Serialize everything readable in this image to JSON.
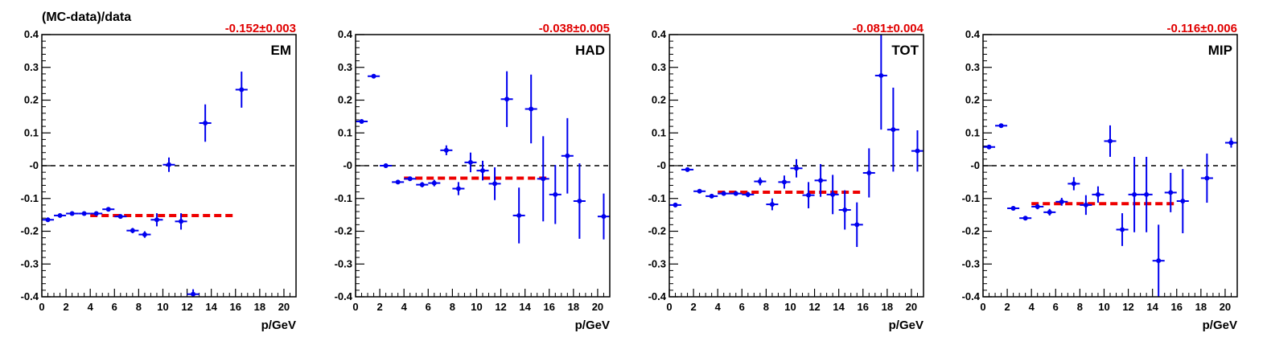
{
  "ylabel": "(MC-data)/data",
  "colors": {
    "points": "#0000ee",
    "fit": "#ee0000",
    "zero_line": "#000000",
    "fit_text": "#e00000"
  },
  "chart_data": [
    {
      "type": "scatter",
      "label": "EM",
      "fit_text": "-0.152±0.003",
      "fit_value": -0.152,
      "fit_range": [
        4,
        16
      ],
      "xlabel": "p/GeV",
      "xlim": [
        0,
        21
      ],
      "ylim": [
        -0.4,
        0.4
      ],
      "xticks": [
        0,
        2,
        4,
        6,
        8,
        10,
        12,
        14,
        16,
        18,
        20
      ],
      "yticks": [
        -0.4,
        -0.3,
        -0.2,
        -0.1,
        0,
        0.1,
        0.2,
        0.3,
        0.4
      ],
      "ytick_labels": [
        "-0.4",
        "-0.3",
        "-0.2",
        "-0.1",
        "-0",
        "0.1",
        "0.2",
        "0.3",
        "0.4"
      ],
      "points": [
        {
          "x": 0.5,
          "y": -0.165,
          "err": 0.005
        },
        {
          "x": 1.5,
          "y": -0.152,
          "err": 0.005
        },
        {
          "x": 2.5,
          "y": -0.146,
          "err": 0.005
        },
        {
          "x": 3.5,
          "y": -0.146,
          "err": 0.005
        },
        {
          "x": 4.5,
          "y": -0.146,
          "err": 0.006
        },
        {
          "x": 5.5,
          "y": -0.133,
          "err": 0.006
        },
        {
          "x": 6.5,
          "y": -0.155,
          "err": 0.007
        },
        {
          "x": 7.5,
          "y": -0.198,
          "err": 0.008
        },
        {
          "x": 8.5,
          "y": -0.21,
          "err": 0.01
        },
        {
          "x": 9.5,
          "y": -0.165,
          "err": 0.02
        },
        {
          "x": 10.5,
          "y": 0.003,
          "err": 0.022
        },
        {
          "x": 11.5,
          "y": -0.17,
          "err": 0.025
        },
        {
          "x": 12.5,
          "y": -0.392,
          "err": 0.015
        },
        {
          "x": 13.5,
          "y": 0.13,
          "err": 0.057
        },
        {
          "x": 16.5,
          "y": 0.232,
          "err": 0.055
        }
      ]
    },
    {
      "type": "scatter",
      "label": "HAD",
      "fit_text": "-0.038±0.005",
      "fit_value": -0.038,
      "fit_range": [
        4,
        16
      ],
      "xlabel": "p/GeV",
      "xlim": [
        0,
        21
      ],
      "ylim": [
        -0.4,
        0.4
      ],
      "xticks": [
        0,
        2,
        4,
        6,
        8,
        10,
        12,
        14,
        16,
        18,
        20
      ],
      "yticks": [
        -0.4,
        -0.3,
        -0.2,
        -0.1,
        0,
        0.1,
        0.2,
        0.3,
        0.4
      ],
      "ytick_labels": [
        "-0.4",
        "-0.3",
        "-0.2",
        "-0.1",
        "-0",
        "0.1",
        "0.2",
        "0.3",
        "0.4"
      ],
      "points": [
        {
          "x": 0.5,
          "y": 0.135,
          "err": 0.005
        },
        {
          "x": 1.5,
          "y": 0.273,
          "err": 0.005
        },
        {
          "x": 2.5,
          "y": 0.0,
          "err": 0.004
        },
        {
          "x": 3.5,
          "y": -0.05,
          "err": 0.005
        },
        {
          "x": 4.5,
          "y": -0.04,
          "err": 0.006
        },
        {
          "x": 5.5,
          "y": -0.058,
          "err": 0.008
        },
        {
          "x": 6.5,
          "y": -0.053,
          "err": 0.01
        },
        {
          "x": 7.5,
          "y": 0.047,
          "err": 0.015
        },
        {
          "x": 8.5,
          "y": -0.07,
          "err": 0.02
        },
        {
          "x": 9.5,
          "y": 0.01,
          "err": 0.03
        },
        {
          "x": 10.5,
          "y": -0.015,
          "err": 0.03
        },
        {
          "x": 11.5,
          "y": -0.055,
          "err": 0.05
        },
        {
          "x": 12.5,
          "y": 0.203,
          "err": 0.085
        },
        {
          "x": 13.5,
          "y": -0.152,
          "err": 0.085
        },
        {
          "x": 14.5,
          "y": 0.173,
          "err": 0.105
        },
        {
          "x": 15.5,
          "y": -0.04,
          "err": 0.13
        },
        {
          "x": 16.5,
          "y": -0.088,
          "err": 0.09
        },
        {
          "x": 17.5,
          "y": 0.03,
          "err": 0.115
        },
        {
          "x": 18.5,
          "y": -0.108,
          "err": 0.115
        },
        {
          "x": 20.5,
          "y": -0.155,
          "err": 0.07
        }
      ]
    },
    {
      "type": "scatter",
      "label": "TOT",
      "fit_text": "-0.081±0.004",
      "fit_value": -0.081,
      "fit_range": [
        4,
        16
      ],
      "xlabel": "p/GeV",
      "xlim": [
        0,
        21
      ],
      "ylim": [
        -0.4,
        0.4
      ],
      "xticks": [
        0,
        2,
        4,
        6,
        8,
        10,
        12,
        14,
        16,
        18,
        20
      ],
      "yticks": [
        -0.4,
        -0.3,
        -0.2,
        -0.1,
        0,
        0.1,
        0.2,
        0.3,
        0.4
      ],
      "ytick_labels": [
        "-0.4",
        "-0.3",
        "-0.2",
        "-0.1",
        "-0",
        "0.1",
        "0.2",
        "0.3",
        "0.4"
      ],
      "points": [
        {
          "x": 0.5,
          "y": -0.12,
          "err": 0.007
        },
        {
          "x": 1.5,
          "y": -0.012,
          "err": 0.005
        },
        {
          "x": 2.5,
          "y": -0.078,
          "err": 0.005
        },
        {
          "x": 3.5,
          "y": -0.093,
          "err": 0.005
        },
        {
          "x": 4.5,
          "y": -0.085,
          "err": 0.006
        },
        {
          "x": 5.5,
          "y": -0.085,
          "err": 0.007
        },
        {
          "x": 6.5,
          "y": -0.088,
          "err": 0.008
        },
        {
          "x": 7.5,
          "y": -0.048,
          "err": 0.012
        },
        {
          "x": 8.5,
          "y": -0.118,
          "err": 0.018
        },
        {
          "x": 9.5,
          "y": -0.05,
          "err": 0.02
        },
        {
          "x": 10.5,
          "y": -0.008,
          "err": 0.028
        },
        {
          "x": 11.5,
          "y": -0.09,
          "err": 0.04
        },
        {
          "x": 12.5,
          "y": -0.045,
          "err": 0.05
        },
        {
          "x": 13.5,
          "y": -0.088,
          "err": 0.06
        },
        {
          "x": 14.5,
          "y": -0.135,
          "err": 0.06
        },
        {
          "x": 15.5,
          "y": -0.18,
          "err": 0.068
        },
        {
          "x": 16.5,
          "y": -0.022,
          "err": 0.075
        },
        {
          "x": 17.5,
          "y": 0.275,
          "err": 0.165
        },
        {
          "x": 18.5,
          "y": 0.11,
          "err": 0.128
        },
        {
          "x": 20.5,
          "y": 0.045,
          "err": 0.063
        }
      ]
    },
    {
      "type": "scatter",
      "label": "MIP",
      "fit_text": "-0.116±0.006",
      "fit_value": -0.116,
      "fit_range": [
        4,
        16
      ],
      "xlabel": "p/GeV",
      "xlim": [
        0,
        21
      ],
      "ylim": [
        -0.4,
        0.4
      ],
      "xticks": [
        0,
        2,
        4,
        6,
        8,
        10,
        12,
        14,
        16,
        18,
        20
      ],
      "yticks": [
        -0.4,
        -0.3,
        -0.2,
        -0.1,
        0,
        0.1,
        0.2,
        0.3,
        0.4
      ],
      "ytick_labels": [
        "-0.4",
        "-0.3",
        "-0.2",
        "-0.1",
        "-0",
        "0.1",
        "0.2",
        "0.3",
        "0.4"
      ],
      "points": [
        {
          "x": 0.5,
          "y": 0.057,
          "err": 0.006
        },
        {
          "x": 1.5,
          "y": 0.122,
          "err": 0.005
        },
        {
          "x": 2.5,
          "y": -0.13,
          "err": 0.006
        },
        {
          "x": 3.5,
          "y": -0.16,
          "err": 0.006
        },
        {
          "x": 4.5,
          "y": -0.125,
          "err": 0.008
        },
        {
          "x": 5.5,
          "y": -0.142,
          "err": 0.01
        },
        {
          "x": 6.5,
          "y": -0.11,
          "err": 0.012
        },
        {
          "x": 7.5,
          "y": -0.055,
          "err": 0.02
        },
        {
          "x": 8.5,
          "y": -0.12,
          "err": 0.03
        },
        {
          "x": 9.5,
          "y": -0.088,
          "err": 0.025
        },
        {
          "x": 10.5,
          "y": 0.075,
          "err": 0.048
        },
        {
          "x": 11.5,
          "y": -0.195,
          "err": 0.05
        },
        {
          "x": 12.5,
          "y": -0.088,
          "err": 0.115
        },
        {
          "x": 13.5,
          "y": -0.088,
          "err": 0.115
        },
        {
          "x": 14.5,
          "y": -0.29,
          "err": 0.11
        },
        {
          "x": 15.5,
          "y": -0.082,
          "err": 0.06
        },
        {
          "x": 16.5,
          "y": -0.108,
          "err": 0.098
        },
        {
          "x": 18.5,
          "y": -0.038,
          "err": 0.075
        },
        {
          "x": 20.5,
          "y": 0.07,
          "err": 0.015
        }
      ]
    }
  ]
}
